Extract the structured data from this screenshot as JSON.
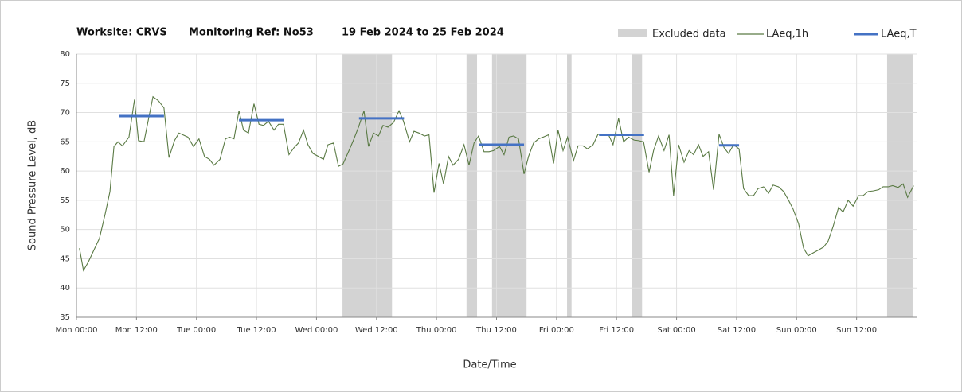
{
  "chart_data": {
    "type": "line",
    "title_parts": [
      "Worksite: CRVS",
      "Monitoring Ref: No53",
      "19 Feb 2024 to 25 Feb 2024"
    ],
    "x_label": "Date/Time",
    "y_label": "Sound Pressure Level, dB",
    "xlim": [
      0,
      168
    ],
    "xticks": [
      {
        "value": 0,
        "label": "Mon 00:00"
      },
      {
        "value": 12,
        "label": "Mon 12:00"
      },
      {
        "value": 24,
        "label": "Tue 00:00"
      },
      {
        "value": 36,
        "label": "Tue 12:00"
      },
      {
        "value": 48,
        "label": "Wed 00:00"
      },
      {
        "value": 60,
        "label": "Wed 12:00"
      },
      {
        "value": 72,
        "label": "Thu 00:00"
      },
      {
        "value": 84,
        "label": "Thu 12:00"
      },
      {
        "value": 96,
        "label": "Fri 00:00"
      },
      {
        "value": 108,
        "label": "Fri 12:00"
      },
      {
        "value": 120,
        "label": "Sat 00:00"
      },
      {
        "value": 132,
        "label": "Sat 12:00"
      },
      {
        "value": 144,
        "label": "Sun 00:00"
      },
      {
        "value": 156,
        "label": "Sun 12:00"
      }
    ],
    "ylim": [
      35,
      80
    ],
    "yticks": [
      35,
      40,
      45,
      50,
      55,
      60,
      65,
      70,
      75,
      80
    ],
    "grid": true,
    "excluded": {
      "name": "Excluded data",
      "color": "#d3d3d3",
      "ranges": [
        [
          53.2,
          63.1
        ],
        [
          78,
          80.1
        ],
        [
          83.1,
          90
        ],
        [
          98.1,
          99
        ],
        [
          111.1,
          113.1
        ],
        [
          162.1,
          167.2
        ]
      ]
    },
    "leq_t": {
      "name": "LAeq,T",
      "color": "#4472c4",
      "segments": [
        {
          "x": [
            8.5,
            17.5
          ],
          "value": 69.4
        },
        {
          "x": [
            32.5,
            41.5
          ],
          "value": 68.7
        },
        {
          "x": [
            56.5,
            65.5
          ],
          "value": 69
        },
        {
          "x": [
            80.5,
            89.5
          ],
          "value": 64.5
        },
        {
          "x": [
            104.5,
            113.5
          ],
          "value": 66.2
        },
        {
          "x": [
            128.5,
            132.5
          ],
          "value": 64.4
        }
      ]
    },
    "x": [
      0.6,
      1.4,
      2.4,
      3.5,
      4.6,
      5.7,
      6.7,
      7.5,
      8.3,
      9.2,
      10.5,
      11.6,
      12.4,
      13.5,
      15.3,
      16.4,
      17.5,
      18.5,
      19.6,
      20.5,
      22.3,
      23.4,
      24.5,
      25.6,
      26.6,
      27.5,
      28.7,
      29.8,
      30.6,
      31.5,
      32.5,
      33.4,
      34.4,
      35.5,
      36.5,
      37.4,
      38.4,
      39.5,
      40.4,
      41.4,
      42.5,
      43.5,
      44.4,
      45.4,
      46.3,
      47.3,
      48.4,
      49.4,
      50.3,
      51.4,
      52.4,
      53.3,
      54.5,
      55.4,
      56.4,
      57.5,
      58.4,
      59.4,
      60.4,
      61.3,
      62.3,
      63.4,
      64.5,
      65.4,
      66.6,
      67.5,
      68.5,
      69.6,
      70.5,
      71.5,
      72.5,
      73.4,
      74.4,
      75.3,
      76.4,
      77.5,
      78.5,
      79.5,
      80.4,
      81.5,
      82.5,
      83.4,
      84.6,
      85.5,
      86.5,
      87.4,
      88.4,
      89.5,
      90.4,
      91.4,
      92.4,
      93.3,
      94.4,
      95.4,
      96.3,
      97.3,
      98.2,
      99.4,
      100.3,
      101.3,
      102.2,
      103.3,
      104.3,
      105.3,
      106.4,
      107.3,
      108.4,
      109.4,
      110.4,
      111.5,
      112.4,
      113.4,
      114.5,
      115.4,
      116.4,
      117.5,
      118.5,
      119.4,
      120.4,
      121.5,
      122.5,
      123.4,
      124.4,
      125.3,
      126.4,
      127.4,
      128.5,
      129.5,
      130.4,
      131.4,
      132.5,
      133.4,
      134.4,
      135.4,
      136.3,
      137.4,
      138.4,
      139.3,
      140.4,
      141.4,
      142.4,
      143.3,
      144.4,
      145.4,
      146.3,
      147.3,
      148.4,
      149.4,
      150.3,
      151.3,
      152.4,
      153.3,
      154.3,
      155.3,
      156.4,
      157.3,
      158.3,
      159.3,
      160.4,
      161.3,
      162.3,
      163.2,
      164.3,
      165.3,
      166.2,
      167.4
    ],
    "series": [
      {
        "name": "LAeq,1h",
        "color": "#5a7a44",
        "values": [
          46.8,
          43,
          44.5,
          46.5,
          48.5,
          52.5,
          56.5,
          64.2,
          65,
          64.3,
          65.8,
          72.2,
          65.2,
          65,
          72.7,
          72,
          70.8,
          62.3,
          65.2,
          66.5,
          65.8,
          64.2,
          65.5,
          62.5,
          62,
          61,
          62,
          65.5,
          65.8,
          65.5,
          70.3,
          67,
          66.5,
          71.5,
          68,
          67.8,
          68.5,
          67,
          68,
          68,
          62.8,
          64,
          64.8,
          67,
          64.5,
          63,
          62.5,
          62,
          64.5,
          64.8,
          60.8,
          61.2,
          63.5,
          65.3,
          67.5,
          70.3,
          64.2,
          66.5,
          66,
          67.8,
          67.5,
          68.3,
          70.3,
          68.5,
          65,
          66.8,
          66.5,
          66,
          66.2,
          56.3,
          61.3,
          57.8,
          62.5,
          61,
          62,
          64.5,
          61,
          64.8,
          66,
          63.3,
          63.3,
          63.5,
          64.2,
          62.8,
          65.8,
          66,
          65.5,
          59.5,
          62.5,
          64.8,
          65.5,
          65.8,
          66.2,
          61.3,
          67,
          63.5,
          65.8,
          61.8,
          64.3,
          64.3,
          63.8,
          64.5,
          66.3,
          66.2,
          66.2,
          64.5,
          69,
          65,
          65.8,
          65.3,
          65.2,
          65,
          59.8,
          63.5,
          66,
          63.5,
          66.2,
          55.8,
          64.5,
          61.5,
          63.5,
          62.8,
          64.5,
          62.5,
          63.3,
          56.8,
          66.3,
          64,
          63,
          64.5,
          63.8,
          57,
          55.8,
          55.8,
          57,
          57.3,
          56.2,
          57.6,
          57.3,
          56.5,
          55,
          53.5,
          51,
          46.8,
          45.5,
          46,
          46.5,
          47,
          48,
          50.5,
          53.8,
          53,
          55,
          54,
          55.8,
          55.8,
          56.5,
          56.6,
          56.8,
          57.3,
          57.3,
          57.5,
          57.2,
          57.8,
          55.5,
          57.5
        ]
      }
    ]
  }
}
